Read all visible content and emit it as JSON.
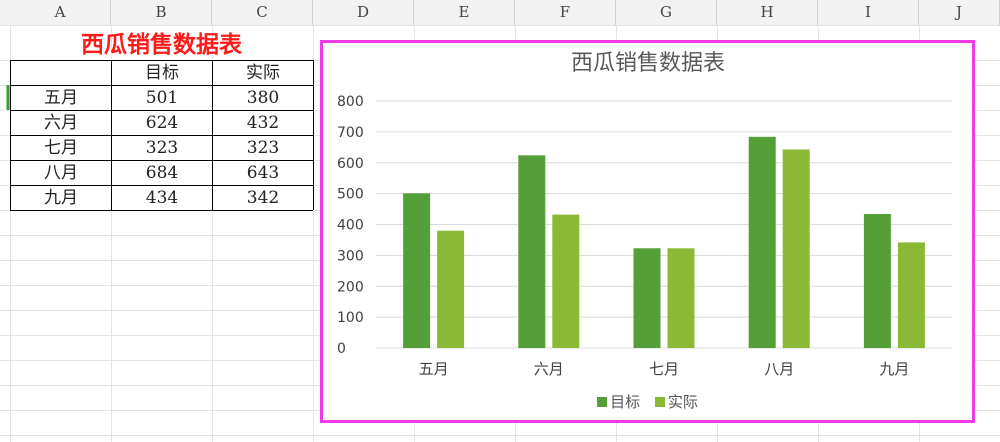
{
  "sheet": {
    "columns": [
      "A",
      "B",
      "C",
      "D",
      "E",
      "F",
      "G",
      "H",
      "I",
      "J"
    ],
    "title": "西瓜销售数据表",
    "headers": [
      "",
      "目标",
      "实际"
    ],
    "rows": [
      {
        "month": "五月",
        "target": "501",
        "actual": "380"
      },
      {
        "month": "六月",
        "target": "624",
        "actual": "432"
      },
      {
        "month": "七月",
        "target": "323",
        "actual": "323"
      },
      {
        "month": "八月",
        "target": "684",
        "actual": "643"
      },
      {
        "month": "九月",
        "target": "434",
        "actual": "342"
      }
    ]
  },
  "chart_data": {
    "type": "bar",
    "title": "西瓜销售数据表",
    "categories": [
      "五月",
      "六月",
      "七月",
      "八月",
      "九月"
    ],
    "series": [
      {
        "name": "目标",
        "values": [
          501,
          624,
          323,
          684,
          434
        ],
        "color": "#559f39"
      },
      {
        "name": "实际",
        "values": [
          380,
          432,
          323,
          643,
          342
        ],
        "color": "#8cb935"
      }
    ],
    "ylim": [
      0,
      800
    ],
    "yticks": [
      0,
      100,
      200,
      300,
      400,
      500,
      600,
      700,
      800
    ],
    "grid": true,
    "legend": "bottom",
    "xlabel": "",
    "ylabel": "",
    "border_color": "#ee3de8"
  }
}
